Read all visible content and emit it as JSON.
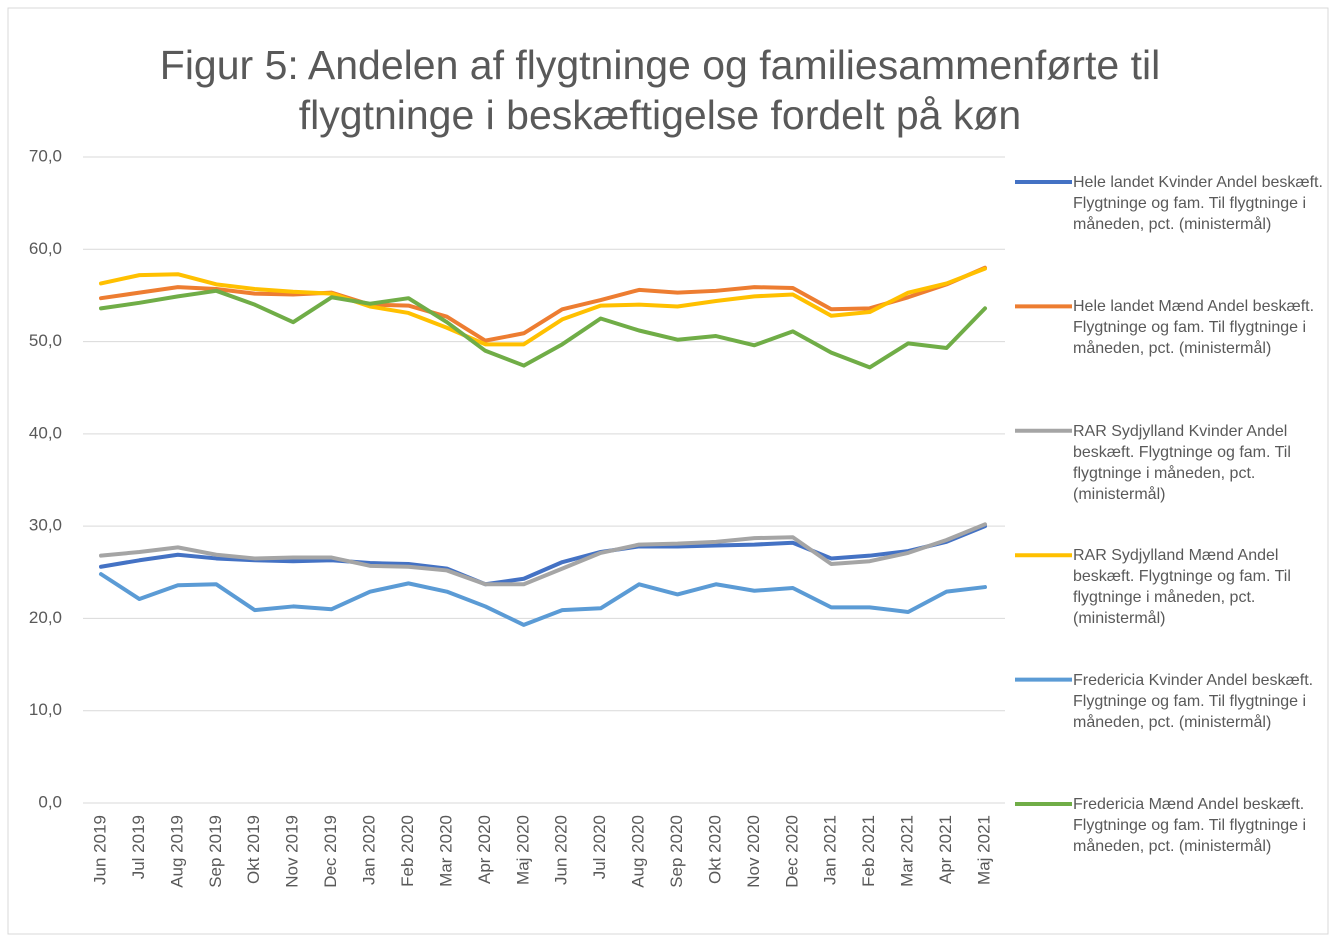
{
  "chart_data": {
    "type": "line",
    "title": "Figur 5: Andelen af flygtninge og familiesammenførte til flygtninge i beskæftigelse fordelt på køn",
    "categories": [
      "Jun 2019",
      "Jul 2019",
      "Aug 2019",
      "Sep 2019",
      "Okt 2019",
      "Nov 2019",
      "Dec 2019",
      "Jan 2020",
      "Feb 2020",
      "Mar 2020",
      "Apr 2020",
      "Maj 2020",
      "Jun 2020",
      "Jul 2020",
      "Aug 2020",
      "Sep 2020",
      "Okt 2020",
      "Nov 2020",
      "Dec 2020",
      "Jan 2021",
      "Feb 2021",
      "Mar 2021",
      "Apr 2021",
      "Maj 2021"
    ],
    "ylim": [
      0,
      70
    ],
    "yticks": [
      {
        "value": 0,
        "label": "0,0"
      },
      {
        "value": 10,
        "label": "10,0"
      },
      {
        "value": 20,
        "label": "20,0"
      },
      {
        "value": 30,
        "label": "30,0"
      },
      {
        "value": 40,
        "label": "40,0"
      },
      {
        "value": 50,
        "label": "50,0"
      },
      {
        "value": 60,
        "label": "60,0"
      },
      {
        "value": 70,
        "label": "70,0"
      }
    ],
    "grid": true,
    "legend": "right",
    "series": [
      {
        "name": "Hele landet Kvinder Andel beskæft. Flygtninge og fam. Til flygtninge i måneden, pct. (ministermål)",
        "color": "#4472c4",
        "values": [
          25.6,
          26.3,
          26.9,
          26.5,
          26.3,
          26.2,
          26.3,
          26.0,
          25.9,
          25.4,
          23.7,
          24.3,
          26.1,
          27.2,
          27.8,
          27.8,
          27.9,
          28.0,
          28.2,
          26.5,
          26.8,
          27.3,
          28.3,
          30.0
        ]
      },
      {
        "name": "Hele landet Mænd Andel beskæft. Flygtninge og fam. Til flygtninge i måneden, pct. (ministermål)",
        "color": "#ed7d31",
        "values": [
          54.7,
          55.3,
          55.9,
          55.7,
          55.2,
          55.1,
          55.3,
          54.0,
          53.9,
          52.7,
          50.1,
          50.9,
          53.5,
          54.5,
          55.6,
          55.3,
          55.5,
          55.9,
          55.8,
          53.5,
          53.6,
          54.8,
          56.2,
          58.0
        ]
      },
      {
        "name": "RAR Sydjylland Kvinder Andel beskæft. Flygtninge og fam. Til flygtninge i måneden, pct. (ministermål)",
        "color": "#a5a5a5",
        "values": [
          26.8,
          27.2,
          27.7,
          26.9,
          26.5,
          26.6,
          26.6,
          25.7,
          25.6,
          25.2,
          23.7,
          23.7,
          25.4,
          27.1,
          28.0,
          28.1,
          28.3,
          28.7,
          28.8,
          25.9,
          26.2,
          27.1,
          28.5,
          30.2
        ]
      },
      {
        "name": "RAR Sydjylland Mænd Andel beskæft. Flygtninge og fam. Til flygtninge i måneden, pct. (ministermål)",
        "color": "#ffc000",
        "values": [
          56.3,
          57.2,
          57.3,
          56.2,
          55.7,
          55.4,
          55.2,
          53.8,
          53.1,
          51.5,
          49.7,
          49.7,
          52.4,
          53.9,
          54.0,
          53.8,
          54.4,
          54.9,
          55.1,
          52.8,
          53.2,
          55.3,
          56.3,
          57.9
        ]
      },
      {
        "name": "Fredericia Kvinder Andel beskæft. Flygtninge og fam. Til flygtninge i måneden, pct. (ministermål)",
        "color": "#5b9bd5",
        "values": [
          24.8,
          22.1,
          23.6,
          23.7,
          20.9,
          21.3,
          21.0,
          22.9,
          23.8,
          22.9,
          21.3,
          19.3,
          20.9,
          21.1,
          23.7,
          22.6,
          23.7,
          23.0,
          23.3,
          21.2,
          21.2,
          20.7,
          22.9,
          23.4
        ]
      },
      {
        "name": "Fredericia Mænd Andel beskæft. Flygtninge og fam. Til flygtninge i måneden, pct. (ministermål)",
        "color": "#70ad47",
        "values": [
          53.6,
          54.2,
          54.9,
          55.5,
          54.0,
          52.1,
          54.8,
          54.1,
          54.7,
          52.1,
          49.0,
          47.4,
          49.7,
          52.5,
          51.2,
          50.2,
          50.6,
          49.6,
          51.1,
          48.8,
          47.2,
          49.8,
          49.3,
          53.6
        ]
      }
    ]
  }
}
